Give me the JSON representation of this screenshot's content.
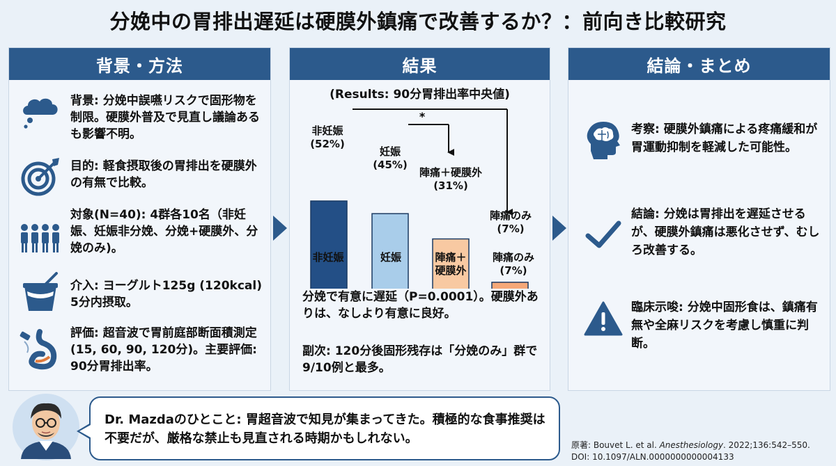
{
  "title": "分娩中の胃排出遅延は硬膜外鎮痛で改善するか？：前向き比較研究",
  "left": {
    "header": "背景・方法",
    "items": [
      {
        "icon": "thought-cloud-icon",
        "text": "背景: 分娩中誤嚥リスクで固形物を制限。硬膜外普及で見直し議論あるも影響不明。"
      },
      {
        "icon": "target-icon",
        "text": "目的: 軽食摂取後の胃排出を硬膜外の有無で比較。"
      },
      {
        "icon": "people-group-icon",
        "text": "対象(N=40): 4群各10名（非妊娠、妊娠非分娩、分娩+硬膜外、分娩のみ)。"
      },
      {
        "icon": "yogurt-icon",
        "text": "介入: ヨーグルト125g (120kcal) 5分内摂取。"
      },
      {
        "icon": "stomach-ultrasound-icon",
        "text": "評価: 超音波で胃前庭部断面積測定(15, 60, 90, 120分)。主要評価: 90分胃排出率。"
      }
    ]
  },
  "middle": {
    "header": "結果",
    "subtitle": "(Results: 90分胃排出率中央値)",
    "significance": "*",
    "bar_labels": [
      [
        "非妊娠",
        "(52%)"
      ],
      [
        "妊娠",
        "(45%)"
      ],
      [
        "陣痛＋硬膜外",
        "(31%)"
      ],
      [
        "陣痛のみ",
        "(7%)"
      ]
    ],
    "categories": [
      "非妊娠",
      "妊娠",
      "陣痛＋\n硬膜外",
      "陣痛のみ\n(7%)"
    ],
    "text1": "分娩で有意に遅延（P=0.0001）。硬膜外ありは、なしより有意に良好。",
    "text2": "副次: 120分後固形残存は「分娩のみ」群で9/10例と最多。"
  },
  "chart_data": {
    "type": "bar",
    "categories": [
      "非妊娠",
      "妊娠",
      "陣痛＋硬膜外",
      "陣痛のみ"
    ],
    "values": [
      52,
      45,
      31,
      7
    ],
    "colors": [
      "#234f86",
      "#a9cdea",
      "#f8c9a2",
      "#f6a878"
    ],
    "title": "(Results: 90分胃排出率中央値)",
    "xlabel": "",
    "ylabel": ""
  },
  "right": {
    "header": "結論・まとめ",
    "items": [
      {
        "icon": "brain-head-icon",
        "text": "考察: 硬膜外鎮痛による疼痛緩和が胃運動抑制を軽減した可能性。"
      },
      {
        "icon": "checkmark-icon",
        "text": "結論: 分娩は胃排出を遅延させるが、硬膜外鎮痛は悪化させず、むしろ改善する。"
      },
      {
        "icon": "warning-icon",
        "text": "臨床示唆: 分娩中固形食は、鎮痛有無や全麻リスクを考慮し慎重に判断。"
      }
    ]
  },
  "comment": "Dr. Mazdaのひとこと: 胃超音波で知見が集まってきた。積極的な食事推奨は不要だが、厳格な禁止も見直される時期かもしれない。",
  "citation": {
    "prefix": "原著: Bouvet L. et al. ",
    "journal": "Anesthesiology",
    "suffix": ". 2022;136:542–550.",
    "doi": "DOI: 10.1097/ALN.0000000000004133"
  },
  "colors": {
    "header": "#2c5a8c",
    "background": "#eaf1f8"
  }
}
